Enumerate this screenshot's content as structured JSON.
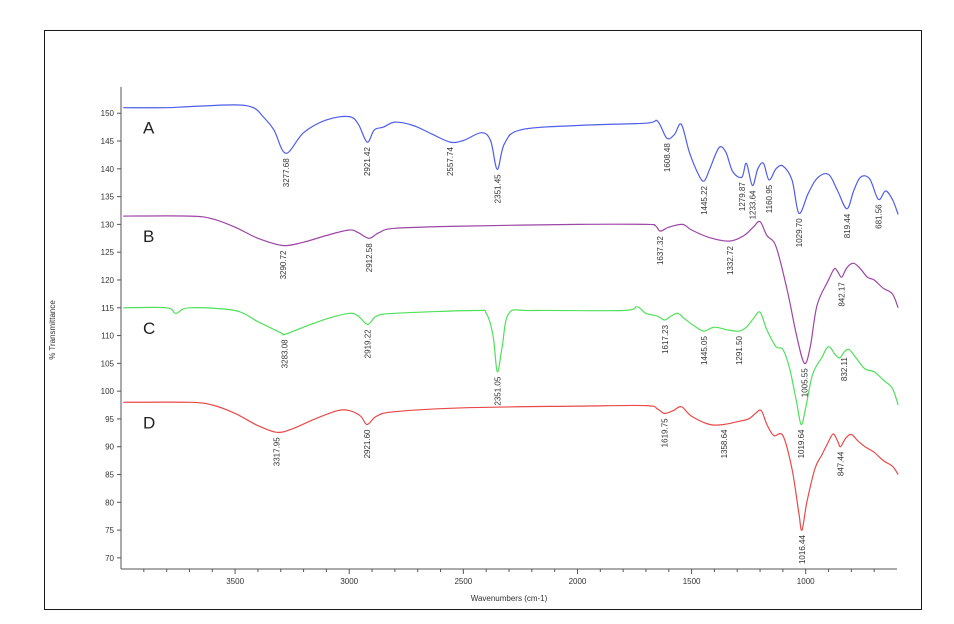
{
  "chart_data": {
    "type": "line",
    "xlabel": "Wavenumbers (cm-1)",
    "ylabel": "% Transmittance",
    "xlim": [
      4000,
      600
    ],
    "ylim": [
      68,
      154
    ],
    "x_ticks": [
      3500,
      3000,
      2500,
      2000,
      1500,
      1000
    ],
    "y_ticks": [
      70,
      75,
      80,
      85,
      90,
      95,
      100,
      105,
      110,
      115,
      120,
      125,
      130,
      135,
      140,
      145,
      150
    ],
    "series": [
      {
        "name": "A",
        "color": "#4f5ee8",
        "points": [
          [
            3990,
            151.0
          ],
          [
            3800,
            151.0
          ],
          [
            3700,
            151.2
          ],
          [
            3500,
            151.5
          ],
          [
            3420,
            151.0
          ],
          [
            3380,
            149.5
          ],
          [
            3330,
            147.0
          ],
          [
            3277.68,
            142.8
          ],
          [
            3200,
            146.5
          ],
          [
            3100,
            148.8
          ],
          [
            3000,
            149.4
          ],
          [
            2960,
            148.0
          ],
          [
            2921.42,
            144.8
          ],
          [
            2890,
            147.0
          ],
          [
            2850,
            147.5
          ],
          [
            2800,
            148.4
          ],
          [
            2720,
            147.8
          ],
          [
            2640,
            146.3
          ],
          [
            2557.74,
            144.8
          ],
          [
            2500,
            145.1
          ],
          [
            2420,
            146.5
          ],
          [
            2380,
            145.0
          ],
          [
            2351.45,
            139.9
          ],
          [
            2320,
            144.5
          ],
          [
            2250,
            147.0
          ],
          [
            2000,
            147.8
          ],
          [
            1700,
            148.2
          ],
          [
            1650,
            148.6
          ],
          [
            1608.48,
            145.5
          ],
          [
            1575,
            146.2
          ],
          [
            1545,
            148.0
          ],
          [
            1510,
            143.0
          ],
          [
            1470,
            139.0
          ],
          [
            1445.22,
            137.8
          ],
          [
            1420,
            140.0
          ],
          [
            1380,
            143.8
          ],
          [
            1350,
            143.0
          ],
          [
            1320,
            139.5
          ],
          [
            1279.87,
            138.5
          ],
          [
            1260,
            141.0
          ],
          [
            1233.64,
            137.0
          ],
          [
            1210,
            140.0
          ],
          [
            1185,
            141.0
          ],
          [
            1160.95,
            138.0
          ],
          [
            1130,
            140.0
          ],
          [
            1100,
            140.5
          ],
          [
            1060,
            138.0
          ],
          [
            1029.7,
            132.0
          ],
          [
            990,
            135.5
          ],
          [
            950,
            138.3
          ],
          [
            900,
            139.0
          ],
          [
            860,
            136.0
          ],
          [
            819.44,
            132.8
          ],
          [
            790,
            136.0
          ],
          [
            760,
            138.5
          ],
          [
            720,
            138.2
          ],
          [
            681.56,
            134.5
          ],
          [
            650,
            136.0
          ],
          [
            620,
            134.5
          ],
          [
            595,
            131.8
          ]
        ],
        "peak_labels": [
          3277.68,
          2921.42,
          2557.74,
          2351.45,
          1608.48,
          1445.22,
          1279.87,
          1233.64,
          1160.95,
          1029.7,
          819.44,
          681.56
        ]
      },
      {
        "name": "B",
        "color": "#9c46a6",
        "points": [
          [
            3990,
            131.5
          ],
          [
            3700,
            131.5
          ],
          [
            3600,
            131.0
          ],
          [
            3500,
            129.5
          ],
          [
            3400,
            127.5
          ],
          [
            3290.72,
            126.2
          ],
          [
            3200,
            126.8
          ],
          [
            3100,
            128.0
          ],
          [
            3000,
            129.0
          ],
          [
            2960,
            128.5
          ],
          [
            2912.58,
            127.5
          ],
          [
            2870,
            128.5
          ],
          [
            2800,
            129.3
          ],
          [
            2500,
            129.7
          ],
          [
            2000,
            130.0
          ],
          [
            1700,
            130.0
          ],
          [
            1660,
            129.8
          ],
          [
            1637.32,
            128.8
          ],
          [
            1600,
            129.5
          ],
          [
            1540,
            130.0
          ],
          [
            1500,
            129.0
          ],
          [
            1420,
            127.6
          ],
          [
            1332.72,
            127.0
          ],
          [
            1270,
            128.0
          ],
          [
            1230,
            129.5
          ],
          [
            1200,
            130.5
          ],
          [
            1170,
            128.0
          ],
          [
            1130,
            126.0
          ],
          [
            1080,
            118.0
          ],
          [
            1040,
            110.0
          ],
          [
            1005.55,
            105.0
          ],
          [
            980,
            108.0
          ],
          [
            950,
            115.5
          ],
          [
            900,
            120.0
          ],
          [
            875,
            122.0
          ],
          [
            860,
            121.5
          ],
          [
            842.17,
            120.5
          ],
          [
            820,
            122.2
          ],
          [
            790,
            123.0
          ],
          [
            760,
            122.0
          ],
          [
            730,
            120.5
          ],
          [
            700,
            120.0
          ],
          [
            660,
            118.5
          ],
          [
            620,
            117.5
          ],
          [
            595,
            115.0
          ]
        ],
        "peak_labels": [
          3290.72,
          2912.58,
          1637.32,
          1332.72,
          1005.55,
          842.17
        ]
      },
      {
        "name": "C",
        "color": "#4fe05a",
        "points": [
          [
            3990,
            115.0
          ],
          [
            3800,
            115.0
          ],
          [
            3760,
            114.0
          ],
          [
            3700,
            115.0
          ],
          [
            3500,
            114.5
          ],
          [
            3400,
            112.5
          ],
          [
            3300,
            110.5
          ],
          [
            3283.08,
            110.2
          ],
          [
            3200,
            111.5
          ],
          [
            3100,
            113.0
          ],
          [
            3000,
            114.0
          ],
          [
            2960,
            113.5
          ],
          [
            2919.22,
            112.0
          ],
          [
            2880,
            113.5
          ],
          [
            2800,
            114.0
          ],
          [
            2450,
            114.5
          ],
          [
            2400,
            114.0
          ],
          [
            2370,
            110.0
          ],
          [
            2351.05,
            103.5
          ],
          [
            2330,
            108.0
          ],
          [
            2300,
            114.0
          ],
          [
            2200,
            114.5
          ],
          [
            1800,
            114.5
          ],
          [
            1740,
            115.2
          ],
          [
            1700,
            114.0
          ],
          [
            1650,
            113.5
          ],
          [
            1617.23,
            112.8
          ],
          [
            1590,
            113.5
          ],
          [
            1560,
            114.0
          ],
          [
            1530,
            113.0
          ],
          [
            1480,
            111.5
          ],
          [
            1445.05,
            110.8
          ],
          [
            1400,
            111.5
          ],
          [
            1340,
            111.0
          ],
          [
            1291.5,
            110.8
          ],
          [
            1260,
            111.5
          ],
          [
            1230,
            113.0
          ],
          [
            1200,
            114.2
          ],
          [
            1170,
            111.0
          ],
          [
            1130,
            108.0
          ],
          [
            1100,
            107.5
          ],
          [
            1070,
            104.0
          ],
          [
            1040,
            98.0
          ],
          [
            1019.64,
            94.0
          ],
          [
            1000,
            97.0
          ],
          [
            970,
            103.0
          ],
          [
            930,
            106.0
          ],
          [
            900,
            108.0
          ],
          [
            870,
            106.5
          ],
          [
            850,
            106.0
          ],
          [
            832.11,
            107.0
          ],
          [
            810,
            107.5
          ],
          [
            780,
            106.0
          ],
          [
            740,
            104.0
          ],
          [
            700,
            103.5
          ],
          [
            660,
            102.0
          ],
          [
            620,
            100.5
          ],
          [
            595,
            97.5
          ]
        ],
        "peak_labels": [
          3283.08,
          2919.22,
          2351.05,
          1617.23,
          1445.05,
          1291.5,
          1019.64,
          832.11
        ]
      },
      {
        "name": "D",
        "color": "#e84a4a",
        "points": [
          [
            3990,
            98.0
          ],
          [
            3700,
            98.0
          ],
          [
            3600,
            97.5
          ],
          [
            3500,
            96.0
          ],
          [
            3400,
            93.8
          ],
          [
            3317.95,
            92.6
          ],
          [
            3250,
            93.2
          ],
          [
            3150,
            95.0
          ],
          [
            3050,
            96.5
          ],
          [
            3000,
            96.5
          ],
          [
            2950,
            95.5
          ],
          [
            2921.6,
            94.0
          ],
          [
            2880,
            95.5
          ],
          [
            2800,
            96.3
          ],
          [
            2500,
            97.0
          ],
          [
            2000,
            97.3
          ],
          [
            1700,
            97.4
          ],
          [
            1650,
            96.8
          ],
          [
            1619.75,
            96.0
          ],
          [
            1580,
            96.5
          ],
          [
            1545,
            97.2
          ],
          [
            1500,
            95.5
          ],
          [
            1420,
            94.0
          ],
          [
            1358.64,
            94.0
          ],
          [
            1300,
            94.5
          ],
          [
            1250,
            95.0
          ],
          [
            1220,
            96.0
          ],
          [
            1195,
            96.5
          ],
          [
            1170,
            94.0
          ],
          [
            1140,
            92.0
          ],
          [
            1100,
            92.0
          ],
          [
            1060,
            86.0
          ],
          [
            1030,
            78.0
          ],
          [
            1016.44,
            75.0
          ],
          [
            995,
            80.0
          ],
          [
            960,
            86.0
          ],
          [
            930,
            88.5
          ],
          [
            905,
            90.5
          ],
          [
            880,
            92.3
          ],
          [
            860,
            91.0
          ],
          [
            847.44,
            90.0
          ],
          [
            825,
            91.5
          ],
          [
            800,
            92.2
          ],
          [
            770,
            91.0
          ],
          [
            740,
            90.0
          ],
          [
            700,
            89.0
          ],
          [
            660,
            87.5
          ],
          [
            620,
            86.5
          ],
          [
            595,
            85.0
          ]
        ],
        "peak_labels": [
          3317.95,
          2921.6,
          1619.75,
          1358.64,
          1016.44,
          847.44
        ]
      }
    ]
  }
}
